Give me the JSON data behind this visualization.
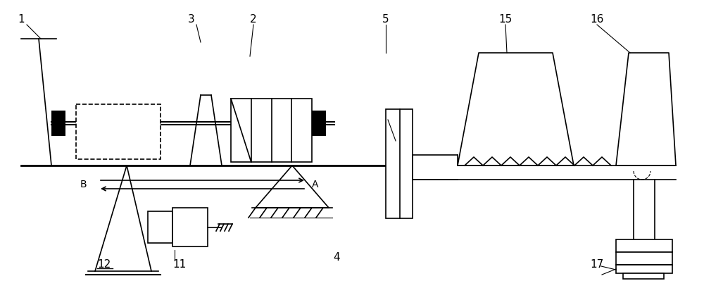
{
  "bg_color": "#ffffff",
  "line_color": "#000000",
  "figsize": [
    10.0,
    3.99
  ],
  "dpi": 100
}
